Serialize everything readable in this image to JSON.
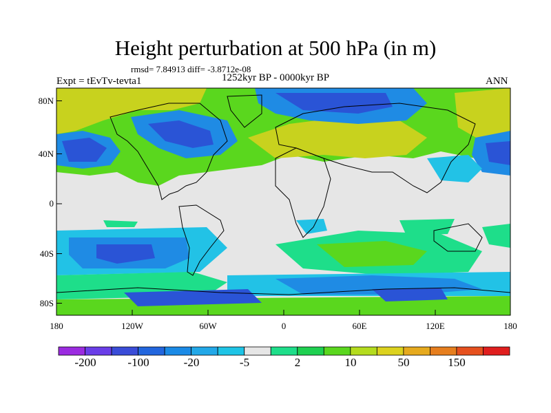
{
  "title": "Height perturbation at 500 hPa (in m)",
  "stats": "rmsd= 7.84913 diff= -3.8712e-08",
  "experiment": "Expt = tEvTv-tevta1",
  "period": "1252kyr BP - 0000kyr BP",
  "season": "ANN",
  "lat_labels": [
    "80N",
    "40N",
    "0",
    "40S",
    "80S"
  ],
  "lon_labels": [
    "180",
    "120W",
    "60W",
    "0",
    "60E",
    "120E",
    "180"
  ],
  "colorbar": {
    "labels": [
      "-200",
      "-100",
      "-20",
      "-5",
      "2",
      "10",
      "50",
      "150"
    ],
    "colors": [
      "#9b2be0",
      "#6a3ee8",
      "#3a4cd8",
      "#2266de",
      "#1a8ae6",
      "#22a8e8",
      "#1ec4e6",
      "#e6e6e6",
      "#1ede8a",
      "#1ed050",
      "#5ad71e",
      "#b4dc1e",
      "#dcd21e",
      "#e6aa1e",
      "#e67e1e",
      "#e6501e",
      "#e01e1e"
    ]
  },
  "field_colors": {
    "background": "#e6e6e6",
    "deep_negative": "#2a54d6",
    "negative": "#1f8be4",
    "weak_negative": "#22c2e6",
    "weak_positive": "#1ede8a",
    "positive": "#5ad71e",
    "strong_positive": "#c8d21e"
  }
}
